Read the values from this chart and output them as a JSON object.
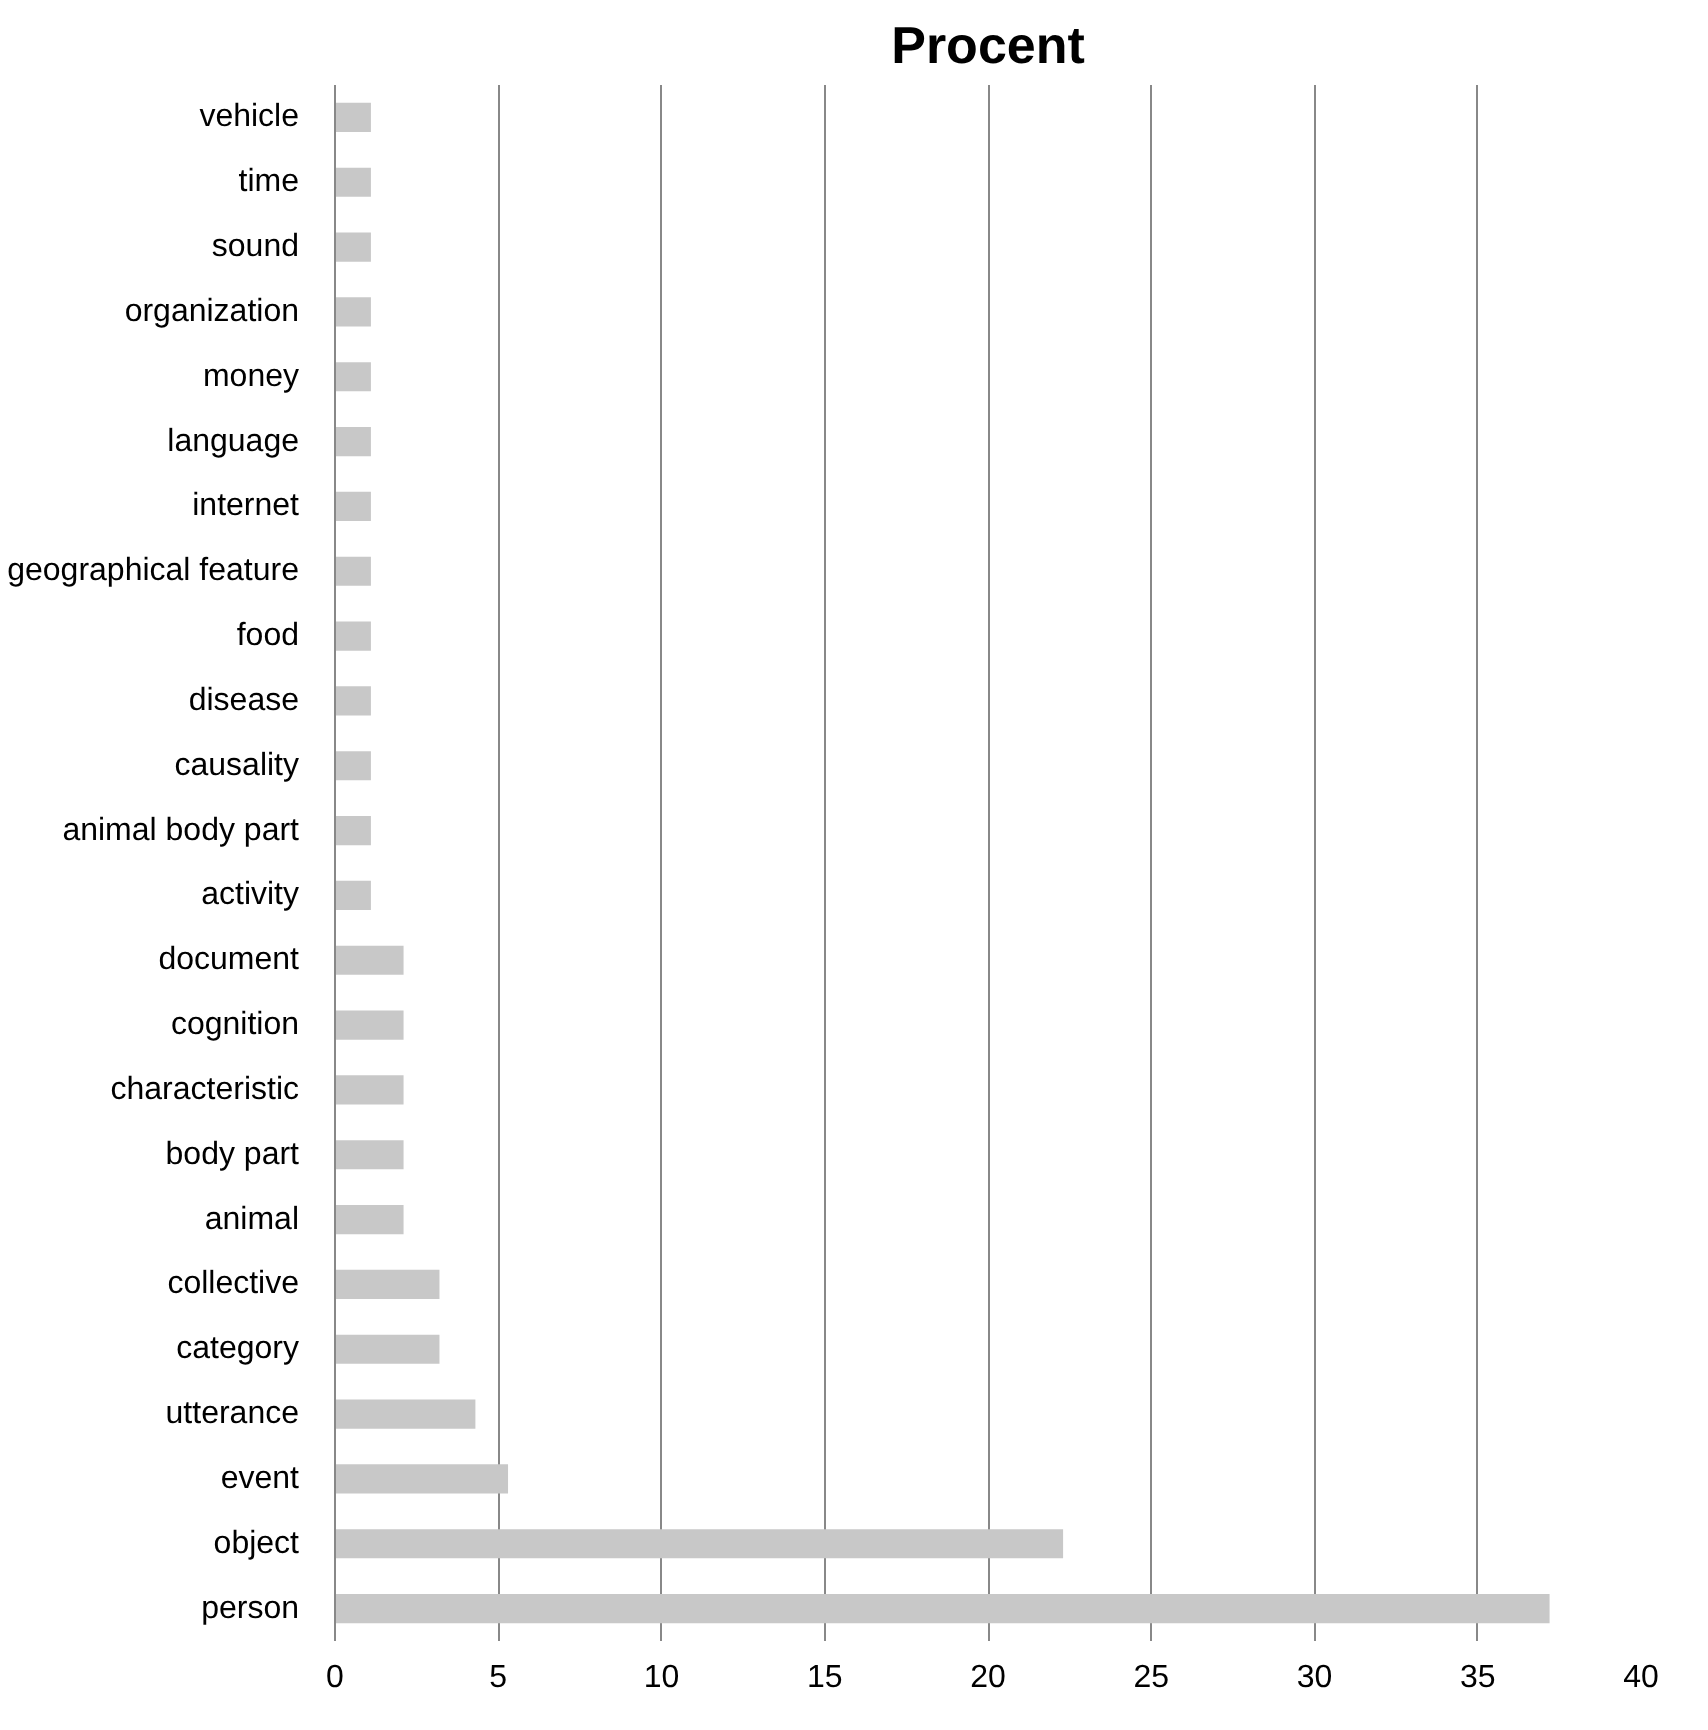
{
  "chart_data": {
    "type": "bar",
    "orientation": "horizontal",
    "title": "Procent",
    "categories": [
      "vehicle",
      "time",
      "sound",
      "organization",
      "money",
      "language",
      "internet",
      "geographical feature",
      "food",
      "disease",
      "causality",
      "animal body part",
      "activity",
      "document",
      "cognition",
      "characteristic",
      "body part",
      "animal",
      "collective",
      "category",
      "utterance",
      "event",
      "object",
      "person"
    ],
    "values": [
      1.1,
      1.1,
      1.1,
      1.1,
      1.1,
      1.1,
      1.1,
      1.1,
      1.1,
      1.1,
      1.1,
      1.1,
      1.1,
      2.1,
      2.1,
      2.1,
      2.1,
      2.1,
      3.2,
      3.2,
      4.3,
      5.3,
      22.3,
      37.2
    ],
    "color": "#c8c8c8",
    "xlim": [
      0,
      40
    ],
    "xticks": [
      0,
      5,
      10,
      15,
      20,
      25,
      30,
      35,
      40
    ],
    "grid": "x"
  }
}
